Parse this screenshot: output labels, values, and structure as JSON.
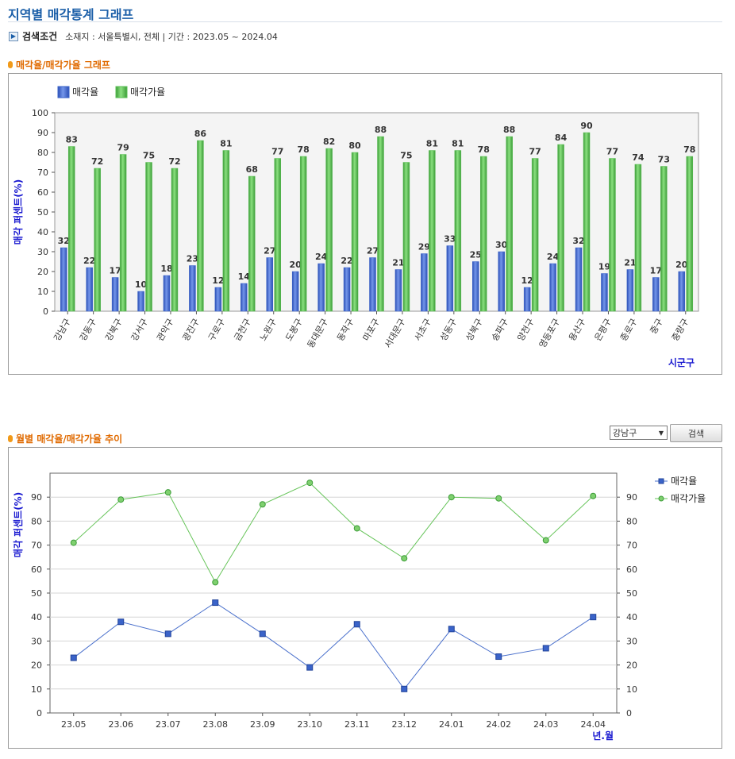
{
  "page_title": "지역별 매각통계 그래프",
  "search_condition": {
    "label": "검색조건",
    "text": "소재지 : 서울특별시, 전체  |  기간 : 2023.05 ~ 2024.04"
  },
  "section1_title": "매각율/매각가율 그래프",
  "section2_title": "월별 매각율/매각가율 추이",
  "controls": {
    "district_select_value": "강남구",
    "search_button_label": "검색"
  },
  "colors": {
    "title": "#1a5ea8",
    "section": "#e06a00",
    "sale_rate": "#3a63c9",
    "price_rate": "#5bbf55",
    "axis_label": "#1a1ad0"
  },
  "chart_data": [
    {
      "type": "bar",
      "title": "",
      "ylabel": "매각 퍼센트(%)",
      "xlabel": "시군구",
      "ylim": [
        0,
        100
      ],
      "yticks": [
        0,
        10,
        20,
        30,
        40,
        50,
        60,
        70,
        80,
        90,
        100
      ],
      "grid": false,
      "legend": "top-left",
      "categories": [
        "강남구",
        "강동구",
        "강북구",
        "강서구",
        "관악구",
        "광진구",
        "구로구",
        "금천구",
        "노원구",
        "도봉구",
        "동대문구",
        "동작구",
        "마포구",
        "서대문구",
        "서초구",
        "성동구",
        "성북구",
        "송파구",
        "양천구",
        "영등포구",
        "용산구",
        "은평구",
        "종로구",
        "중구",
        "중랑구"
      ],
      "series": [
        {
          "name": "매각율",
          "values": [
            32,
            22,
            17,
            10,
            18,
            23,
            12,
            14,
            27,
            20,
            24,
            22,
            27,
            21,
            29,
            33,
            25,
            30,
            12,
            24,
            32,
            19,
            21,
            17,
            20
          ]
        },
        {
          "name": "매각가율",
          "values": [
            83,
            72,
            79,
            75,
            72,
            86,
            81,
            68,
            77,
            78,
            82,
            80,
            88,
            75,
            81,
            81,
            78,
            88,
            77,
            84,
            90,
            77,
            74,
            73,
            78
          ]
        }
      ]
    },
    {
      "type": "line",
      "title": "",
      "ylabel": "매각 퍼센트(%)",
      "xlabel": "년.월",
      "ylim": [
        0,
        100
      ],
      "yticks": [
        0,
        10,
        20,
        30,
        40,
        50,
        60,
        70,
        80,
        90
      ],
      "grid": true,
      "legend": "top-right",
      "categories": [
        "23.05",
        "23.06",
        "23.07",
        "23.08",
        "23.09",
        "23.10",
        "23.11",
        "23.12",
        "24.01",
        "24.02",
        "24.03",
        "24.04"
      ],
      "series": [
        {
          "name": "매각율",
          "values": [
            23,
            38,
            33,
            46,
            33,
            19,
            37,
            10,
            35,
            23.5,
            27,
            40
          ]
        },
        {
          "name": "매각가율",
          "values": [
            71,
            89,
            92,
            54.5,
            87,
            96,
            77,
            64.5,
            90,
            89.5,
            72,
            90.5
          ]
        }
      ]
    }
  ]
}
